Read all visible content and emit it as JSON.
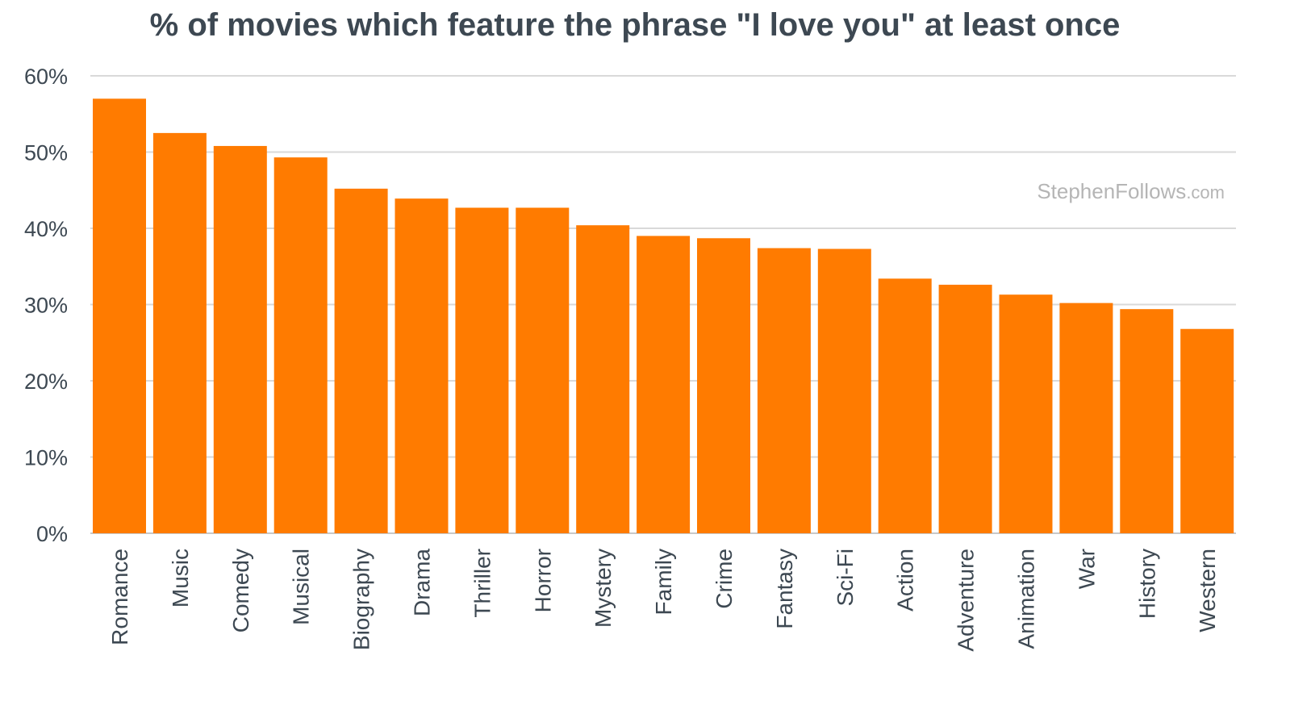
{
  "chart_data": {
    "type": "bar",
    "title": "% of movies which feature the phrase \"I love you\" at least once",
    "xlabel": "",
    "ylabel": "",
    "ylim": [
      0,
      60
    ],
    "yticks": [
      "0%",
      "10%",
      "20%",
      "30%",
      "40%",
      "50%",
      "60%"
    ],
    "ytick_values": [
      0,
      10,
      20,
      30,
      40,
      50,
      60
    ],
    "grid": true,
    "categories": [
      "Romance",
      "Music",
      "Comedy",
      "Musical",
      "Biography",
      "Drama",
      "Thriller",
      "Horror",
      "Mystery",
      "Family",
      "Crime",
      "Fantasy",
      "Sci-Fi",
      "Action",
      "Adventure",
      "Animation",
      "War",
      "History",
      "Western"
    ],
    "values": [
      57.0,
      52.5,
      50.8,
      49.3,
      45.2,
      43.9,
      42.7,
      42.7,
      40.4,
      39.0,
      38.7,
      37.4,
      37.3,
      33.4,
      32.6,
      31.3,
      30.2,
      29.4,
      26.8
    ],
    "watermark": {
      "main": "StephenFollows",
      "suffix": ".com"
    },
    "colors": {
      "bar": "#ff7b00",
      "title": "#3d4852",
      "tick": "#3d4852",
      "grid": "#d9d9d9",
      "watermark": "#b5b5b5"
    }
  }
}
